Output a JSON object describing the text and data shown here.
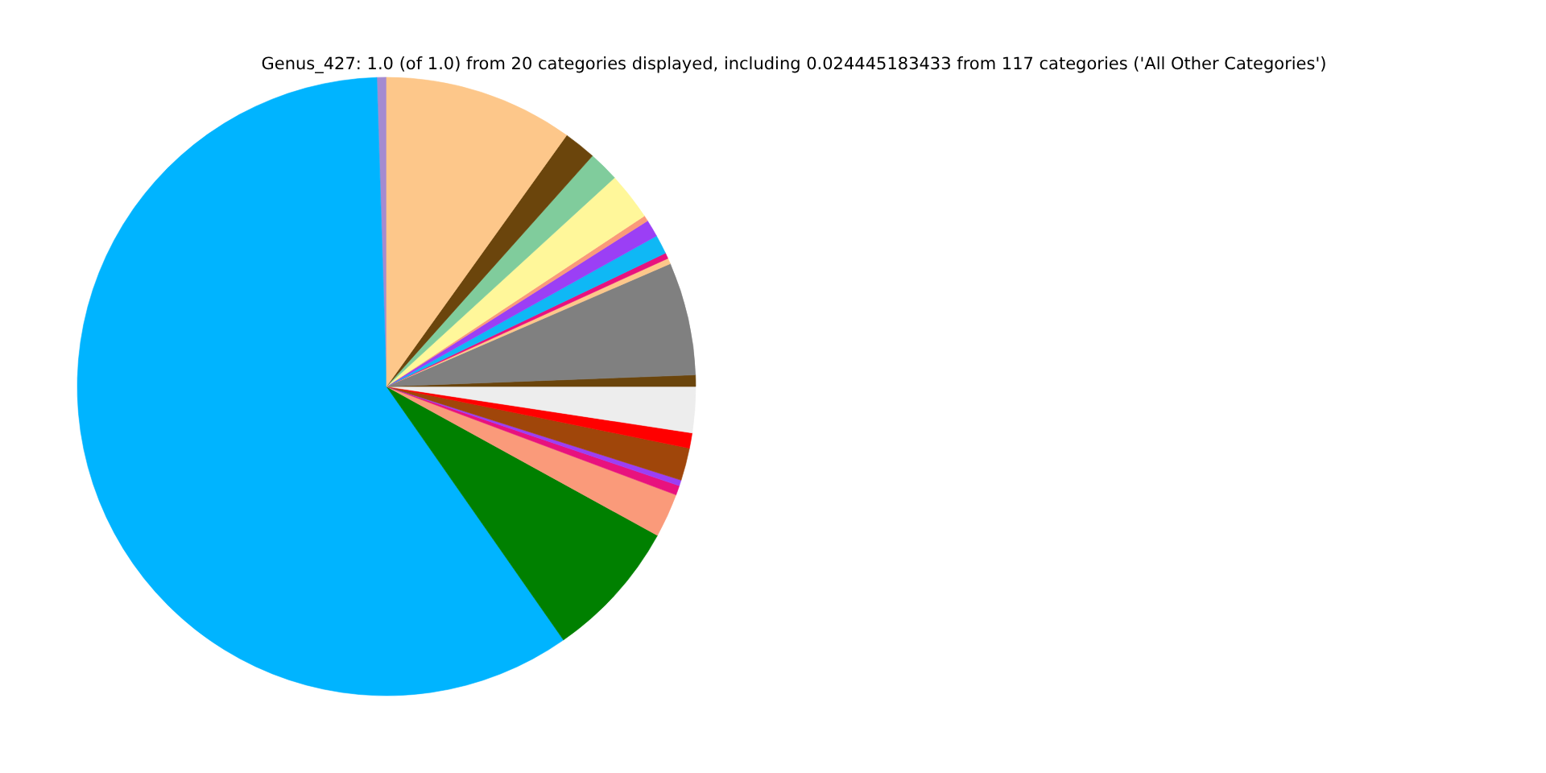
{
  "chart_data": {
    "type": "pie",
    "title": "Genus_427: 1.0 (of 1.0) from 20 categories displayed, including 0.024445183433 from 117 categories ('All Other Categories')",
    "categories": [
      null,
      null,
      null,
      null,
      null,
      null,
      null,
      null,
      null,
      null,
      null,
      null,
      null,
      null,
      null,
      null,
      null,
      null,
      null,
      null
    ],
    "values": [
      0.5,
      59.2,
      7.3,
      2.3,
      0.5,
      0.3,
      1.7,
      0.8,
      2.4,
      0.6,
      5.9,
      0.3,
      0.3,
      1.0,
      0.9,
      0.3,
      2.5,
      1.6,
      1.7,
      9.9
    ],
    "colors": [
      "#a48bd0",
      "#00b4ff",
      "#008000",
      "#fa9a7a",
      "#e8127e",
      "#9b3ff5",
      "#a0460a",
      "#ff0000",
      "#ededed",
      "#6b450c",
      "#808080",
      "#fdc78a",
      "#e8127e",
      "#0fb8f5",
      "#9b3ff5",
      "#fa9a7a",
      "#fff79a",
      "#80cc9c",
      "#6b450c",
      "#fdc78a"
    ]
  }
}
